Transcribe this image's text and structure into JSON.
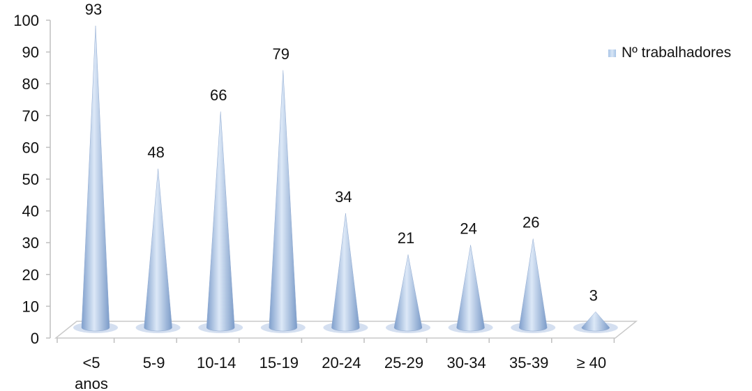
{
  "chart_data": {
    "type": "bar",
    "shape": "cone",
    "categories": [
      [
        "<5",
        "anos"
      ],
      [
        "5-9"
      ],
      [
        "10-14"
      ],
      [
        "15-19"
      ],
      [
        "20-24"
      ],
      [
        "25-29"
      ],
      [
        "30-34"
      ],
      [
        "35-39"
      ],
      [
        "≥ 40"
      ]
    ],
    "series": [
      {
        "name": "Nº trabalhadores",
        "values": [
          93,
          48,
          66,
          79,
          34,
          21,
          24,
          26,
          3
        ]
      }
    ],
    "ylim": [
      0,
      100
    ],
    "yticks": [
      0,
      10,
      20,
      30,
      40,
      50,
      60,
      70,
      80,
      90,
      100
    ],
    "legend_position": "right",
    "grid": false,
    "colors": {
      "cone_light": "#dce8f7",
      "cone_mid": "#a9c3e4",
      "cone_dark": "#6f8fbd",
      "floor": "#cfdcee"
    }
  }
}
